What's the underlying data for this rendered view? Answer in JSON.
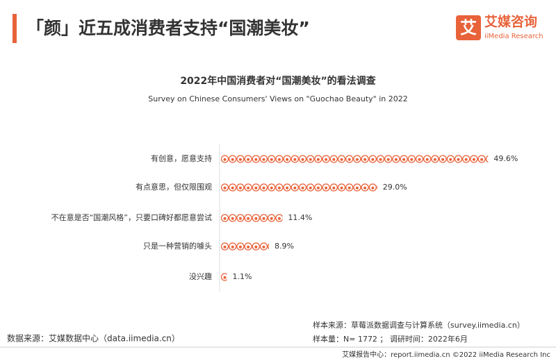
{
  "header": {
    "title": "「颜」近五成消费者支持“国潮美妆”"
  },
  "logo": {
    "mark": "艾",
    "name": "艾媒咨询",
    "sub": "iiMedia Research"
  },
  "chart_data": {
    "type": "pictorial-bar",
    "title": "2022年中国消费者对“国潮美妆”的看法调查",
    "subtitle": "Survey on Chinese Consumers' Views on \"Guochao Beauty\" in 2022",
    "categories": [
      "有创意，愿意支持",
      "有点意思，但仅限围观",
      "不在意是否“国潮风格”，只要口碑好都愿意尝试",
      "只是一种营销的噱头",
      "没兴趣"
    ],
    "values": [
      49.6,
      29.0,
      11.4,
      8.9,
      1.1
    ],
    "value_labels": [
      "49.6%",
      "29.0%",
      "11.4%",
      "8.9%",
      "1.1%"
    ],
    "color": "#e8623a"
  },
  "footer": {
    "source": "数据来源：艾媒数据中心（data.iimedia.cn）",
    "sample_source": "样本来源：草莓派数据调查与计算系统（survey.iimedia.cn）",
    "sample_size": "样本量：N= 1772 ； 调研时间：2022年6月",
    "copyright": "艾媒报告中心：report.iimedia.cn ©2022 iiMedia Research Inc"
  }
}
